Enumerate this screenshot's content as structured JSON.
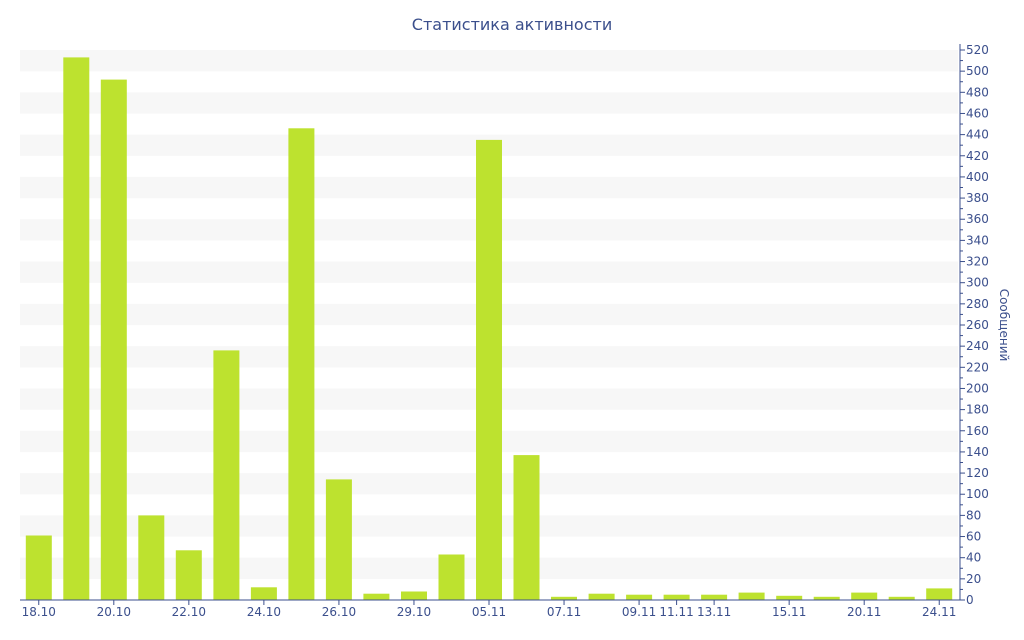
{
  "chart_data": {
    "type": "bar",
    "title": "Статистика активности",
    "ylabel": "Сообщений",
    "ylim": [
      0,
      520
    ],
    "yticks": [
      0,
      20,
      40,
      60,
      80,
      100,
      120,
      140,
      160,
      180,
      200,
      220,
      240,
      260,
      280,
      300,
      320,
      340,
      360,
      380,
      400,
      420,
      440,
      460,
      480,
      500,
      520
    ],
    "x_tick_labels": [
      "18.10",
      "20.10",
      "22.10",
      "24.10",
      "26.10",
      "29.10",
      "05.11",
      "07.11",
      "09.11",
      "11.11",
      "13.11",
      "15.11",
      "20.11",
      "24.11"
    ],
    "categories": [
      "18.10",
      "19.10",
      "20.10",
      "21.10",
      "22.10",
      "23.10",
      "24.10",
      "25.10",
      "26.10",
      "28.10",
      "29.10",
      "30.10",
      "05.11",
      "06.11",
      "07.11",
      "08.11",
      "09.11",
      "11.11",
      "13.11",
      "14.11",
      "15.11",
      "17.11",
      "20.11",
      "22.11",
      "24.11"
    ],
    "values": [
      61,
      513,
      492,
      80,
      47,
      236,
      12,
      446,
      114,
      6,
      8,
      43,
      435,
      137,
      3,
      6,
      5,
      5,
      5,
      7,
      4,
      3,
      7,
      3,
      11
    ],
    "bar_color": "#bde22f",
    "band_color": "#f7f7f7",
    "axis_color": "#3b4f8c",
    "grid_bands": true
  }
}
